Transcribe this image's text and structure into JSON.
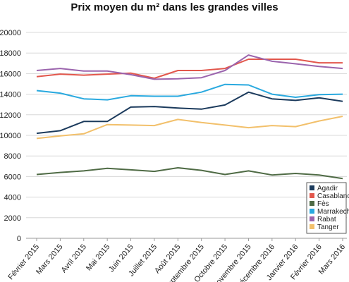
{
  "chart_data": {
    "type": "line",
    "title": "Prix moyen du m² dans les grandes villes",
    "xlabel": "",
    "ylabel": "",
    "categories": [
      "Février 2015",
      "Mars 2015",
      "Avril 2015",
      "Mai 2015",
      "Juin 2015",
      "Juillet 2015",
      "Août 2015",
      "Septembre 2015",
      "Octobre 2015",
      "Novembre 2015",
      "Décembre 2016",
      "Janvier 2016",
      "Février 2016",
      "Mars 2016"
    ],
    "y_ticks": [
      "0",
      "2000",
      "4000",
      "6000",
      "8000",
      "10000",
      "12000",
      "14000",
      "16000",
      "18000",
      "20000"
    ],
    "ylim": [
      0,
      20000
    ],
    "grid": true,
    "legend_position": "bottom-right",
    "series": [
      {
        "name": "Agadir",
        "color": "#1b3a5c",
        "values": [
          10200,
          10450,
          11350,
          11350,
          12750,
          12800,
          12650,
          12550,
          12950,
          14200,
          13550,
          13400,
          13650,
          13300
        ]
      },
      {
        "name": "Casablanca",
        "color": "#e2574c",
        "values": [
          15700,
          15950,
          15850,
          15950,
          16050,
          15550,
          16300,
          16300,
          16500,
          17400,
          17400,
          17400,
          17050,
          17050
        ]
      },
      {
        "name": "Fès",
        "color": "#4f6b45",
        "values": [
          6200,
          6400,
          6550,
          6800,
          6650,
          6500,
          6850,
          6600,
          6200,
          6550,
          6150,
          6300,
          6150,
          5800
        ]
      },
      {
        "name": "Marrakech",
        "color": "#29a9df",
        "values": [
          14350,
          14100,
          13550,
          13450,
          13850,
          13800,
          13800,
          14200,
          14950,
          14900,
          14000,
          13700,
          13950,
          14000
        ]
      },
      {
        "name": "Rabat",
        "color": "#9b64ad",
        "values": [
          16300,
          16500,
          16250,
          16250,
          15900,
          15450,
          15500,
          15600,
          16300,
          17800,
          17200,
          16950,
          16700,
          16500
        ]
      },
      {
        "name": "Tanger",
        "color": "#f2c06b",
        "values": [
          9700,
          9950,
          10150,
          11050,
          11000,
          10950,
          11550,
          11250,
          11000,
          10750,
          10950,
          10850,
          11400,
          11850
        ]
      }
    ]
  }
}
